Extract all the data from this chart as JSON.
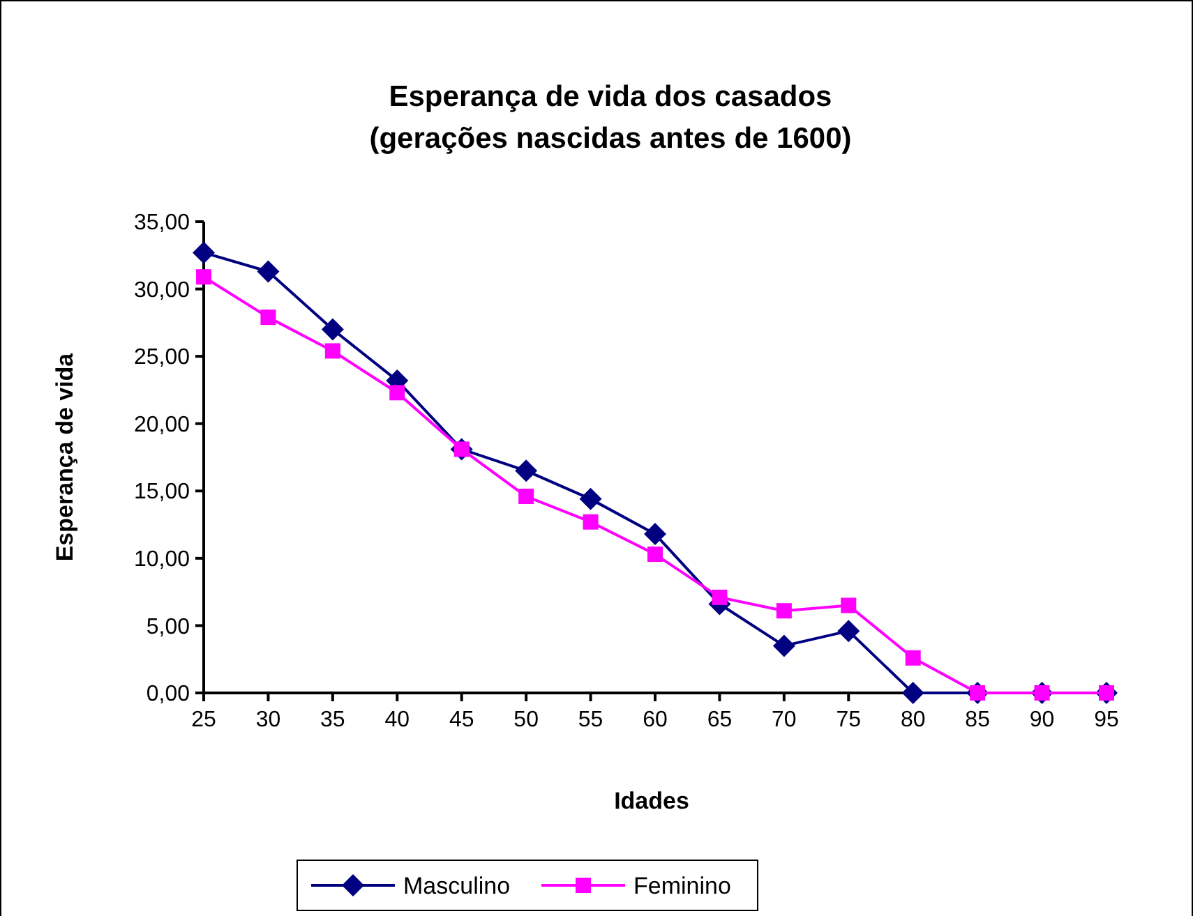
{
  "chart_data": {
    "type": "line",
    "title": "Esperança de vida dos casados",
    "subtitle": "(gerações nascidas antes de 1600)",
    "xlabel": "Idades",
    "ylabel": "Esperança de vida",
    "categories": [
      "25",
      "30",
      "35",
      "40",
      "45",
      "50",
      "55",
      "60",
      "65",
      "70",
      "75",
      "80",
      "85",
      "90",
      "95"
    ],
    "series": [
      {
        "name": "Masculino",
        "color": "#000080",
        "marker": "diamond",
        "values": [
          32.7,
          31.3,
          27.0,
          23.2,
          18.1,
          16.5,
          14.4,
          11.8,
          6.6,
          3.5,
          4.6,
          0,
          0,
          0,
          0
        ]
      },
      {
        "name": "Feminino",
        "color": "#ff00ff",
        "marker": "square",
        "values": [
          30.9,
          27.9,
          25.4,
          22.3,
          18.1,
          14.6,
          12.7,
          10.3,
          7.1,
          6.1,
          6.5,
          2.6,
          0,
          0,
          0
        ]
      }
    ],
    "ylim": [
      0,
      35
    ],
    "yticks": [
      {
        "value": 0,
        "label": "0,00"
      },
      {
        "value": 5,
        "label": "5,00"
      },
      {
        "value": 10,
        "label": "10,00"
      },
      {
        "value": 15,
        "label": "15,00"
      },
      {
        "value": 20,
        "label": "20,00"
      },
      {
        "value": 25,
        "label": "25,00"
      },
      {
        "value": 30,
        "label": "30,00"
      },
      {
        "value": 35,
        "label": "35,00"
      }
    ],
    "grid": false,
    "legend": "bottom",
    "line_style": "solid"
  }
}
